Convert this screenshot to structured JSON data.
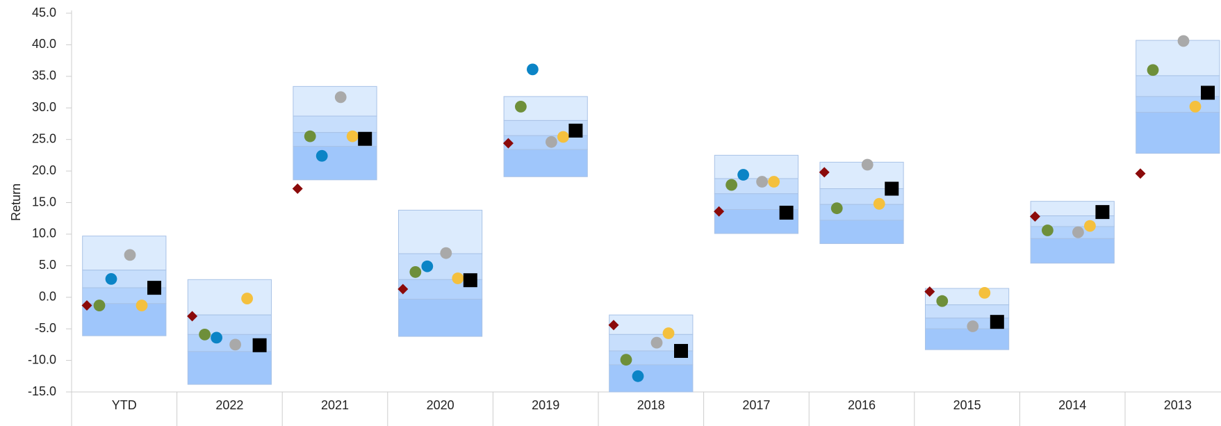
{
  "chart_data": {
    "type": "floating-box-scatter",
    "y_label": "Return",
    "categories": [
      "YTD",
      "2022",
      "2021",
      "2020",
      "2019",
      "2018",
      "2017",
      "2016",
      "2015",
      "2014",
      "2013"
    ],
    "ylim": [
      -15,
      45
    ],
    "yticks": [
      {
        "value": -15,
        "label": "-15.0"
      },
      {
        "value": -10,
        "label": "-10.0"
      },
      {
        "value": -5,
        "label": "-5.0"
      },
      {
        "value": 0,
        "label": "0.0"
      },
      {
        "value": 5,
        "label": "5.0"
      },
      {
        "value": 10,
        "label": "10.0"
      },
      {
        "value": 15,
        "label": "15.0"
      },
      {
        "value": 20,
        "label": "20.0"
      },
      {
        "value": 25,
        "label": "25.0"
      },
      {
        "value": 30,
        "label": "30.0"
      },
      {
        "value": 35,
        "label": "35.0"
      },
      {
        "value": 40,
        "label": "40.0"
      },
      {
        "value": 45,
        "label": "45.0"
      }
    ],
    "band_colors": [
      "#dcebfd",
      "#c7defc",
      "#b2d2fc",
      "#9fc6fb"
    ],
    "band_edges": [
      [
        9.7,
        4.3,
        1.5,
        -1.0,
        -6.1
      ],
      [
        2.8,
        -2.8,
        -5.9,
        -8.6,
        -13.8
      ],
      [
        33.4,
        28.7,
        26.1,
        23.9,
        18.6
      ],
      [
        13.8,
        6.9,
        2.8,
        -0.3,
        -6.2
      ],
      [
        31.8,
        28.0,
        25.6,
        23.4,
        19.1
      ],
      [
        -2.8,
        -5.9,
        -8.5,
        -10.7,
        -15.0
      ],
      [
        22.5,
        18.8,
        16.4,
        13.9,
        10.1
      ],
      [
        21.4,
        17.2,
        14.7,
        12.2,
        8.5
      ],
      [
        1.4,
        -1.2,
        -3.3,
        -5.0,
        -8.3
      ],
      [
        15.2,
        12.9,
        11.2,
        9.3,
        5.4
      ],
      [
        40.7,
        35.1,
        31.8,
        29.3,
        22.8
      ]
    ],
    "series": [
      {
        "marker": "diamond",
        "color": "#8b0a0a",
        "values": [
          -1.3,
          -3.0,
          17.2,
          1.3,
          24.4,
          -4.4,
          13.6,
          19.8,
          0.9,
          12.8,
          19.6
        ]
      },
      {
        "marker": "circle",
        "color": "#6e8f3a",
        "values": [
          -1.3,
          -5.9,
          25.5,
          4.0,
          30.2,
          -9.9,
          17.8,
          14.1,
          -0.6,
          10.6,
          36.0
        ]
      },
      {
        "marker": "circle",
        "color": "#0b84c6",
        "values": [
          2.9,
          -6.4,
          22.4,
          4.9,
          36.1,
          -12.5,
          19.4,
          null,
          null,
          null,
          null
        ]
      },
      {
        "marker": "circle",
        "color": "#a9a9a9",
        "values": [
          6.7,
          -7.5,
          31.7,
          7.0,
          24.6,
          -7.2,
          18.3,
          21.0,
          -4.6,
          10.3,
          40.6
        ]
      },
      {
        "marker": "circle",
        "color": "#f4c03e",
        "values": [
          -1.3,
          -0.2,
          25.5,
          3.0,
          25.4,
          -5.7,
          18.3,
          14.8,
          0.7,
          11.3,
          30.2
        ]
      },
      {
        "marker": "square",
        "color": "#000000",
        "values": [
          1.5,
          -7.6,
          25.1,
          2.7,
          26.4,
          -8.5,
          13.4,
          17.2,
          -3.9,
          13.5,
          32.4
        ]
      }
    ]
  }
}
